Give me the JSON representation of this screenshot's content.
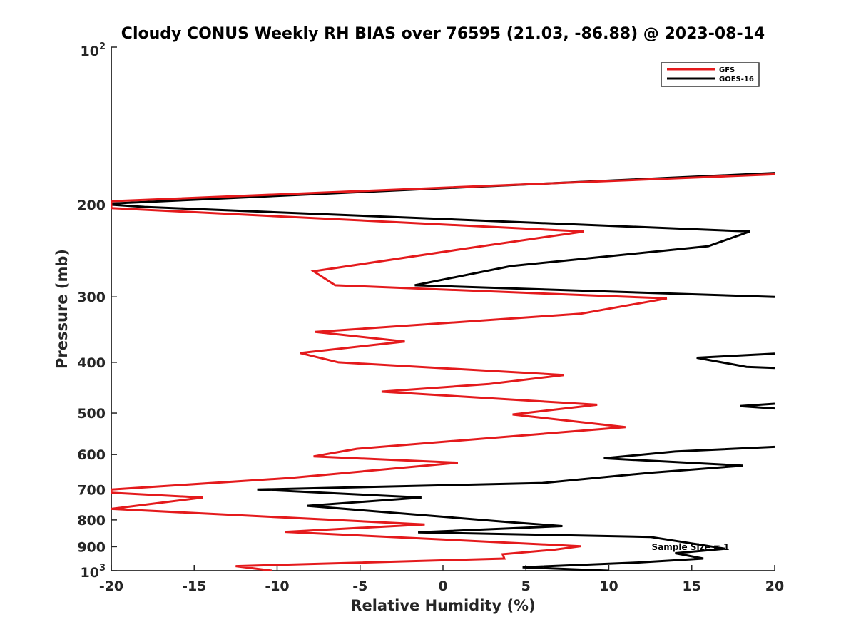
{
  "chart_data": {
    "type": "line",
    "title": "Cloudy CONUS Weekly RH BIAS over 76595 (21.03, -86.88) @ 2023-08-14",
    "xlabel": "Relative Humidity (%)",
    "ylabel": "Pressure (mb)",
    "xlim": [
      -20,
      20
    ],
    "ylim": [
      100,
      1000
    ],
    "yscale": "log",
    "y_reversed": true,
    "x_ticks": [
      "-20",
      "-15",
      "-10",
      "-5",
      "0",
      "5",
      "10",
      "15",
      "20"
    ],
    "y_ticks": [
      {
        "value": 100,
        "base": "10",
        "exp": "2"
      },
      {
        "value": 200,
        "label": "200"
      },
      {
        "value": 300,
        "label": "300"
      },
      {
        "value": 400,
        "label": "400"
      },
      {
        "value": 500,
        "label": "500"
      },
      {
        "value": 600,
        "label": "600"
      },
      {
        "value": 700,
        "label": "700"
      },
      {
        "value": 800,
        "label": "800"
      },
      {
        "value": 900,
        "label": "900"
      },
      {
        "value": 1000,
        "base": "10",
        "exp": "3"
      }
    ],
    "legend": {
      "position": "top-right",
      "entries": [
        "GFS",
        "GOES-16"
      ]
    },
    "annotation": "Sample Size = 1",
    "series": [
      {
        "name": "GFS",
        "color": "#e41a1c",
        "points": [
          [
            20,
            175
          ],
          [
            -20,
            197
          ],
          [
            -20,
            203
          ],
          [
            8.5,
            225
          ],
          [
            1.2,
            243
          ],
          [
            -7.8,
            268
          ],
          [
            -6.5,
            285
          ],
          [
            13.5,
            302
          ],
          [
            8.3,
            323
          ],
          [
            -7.7,
            350
          ],
          [
            -2.3,
            365
          ],
          [
            -8.6,
            384
          ],
          [
            -6.3,
            400
          ],
          [
            7.3,
            423
          ],
          [
            2.8,
            440
          ],
          [
            -3.7,
            455
          ],
          [
            9.3,
            482
          ],
          [
            4.2,
            503
          ],
          [
            11,
            532
          ],
          [
            -5.2,
            585
          ],
          [
            -7.8,
            605
          ],
          [
            0.9,
            622
          ],
          [
            -9.2,
            665
          ],
          [
            -20,
            700
          ],
          [
            -20,
            710
          ],
          [
            -14.5,
            725
          ],
          [
            -20,
            762
          ],
          [
            -1.1,
            816
          ],
          [
            -9.5,
            843
          ],
          [
            8.3,
            898
          ],
          [
            6.7,
            912
          ],
          [
            3.6,
            930
          ],
          [
            3.7,
            948
          ],
          [
            -12.5,
            980
          ],
          [
            -10.3,
            1000
          ]
        ]
      },
      {
        "name": "GOES-16",
        "color": "#000000",
        "segments": [
          [
            [
              20,
              174
            ],
            [
              -20,
              199
            ],
            [
              -20,
              200
            ],
            [
              -18,
              202
            ],
            [
              18.5,
              225
            ],
            [
              16,
              240
            ],
            [
              4.1,
              262
            ],
            [
              -1.7,
              285
            ],
            [
              20,
              300
            ]
          ],
          [
            [
              20,
              385
            ],
            [
              15.3,
              392
            ],
            [
              18.3,
              408
            ],
            [
              20,
              410
            ]
          ],
          [
            [
              20,
              480
            ],
            [
              17.9,
              485
            ],
            [
              20,
              490
            ]
          ],
          [
            [
              20,
              580
            ],
            [
              14,
              592
            ],
            [
              9.7,
              610
            ],
            [
              18.1,
              630
            ],
            [
              12.5,
              650
            ],
            [
              6,
              680
            ],
            [
              -11.2,
              700
            ],
            [
              -1.3,
              725
            ],
            [
              -8.2,
              752
            ],
            [
              3.8,
              807
            ],
            [
              7.2,
              822
            ],
            [
              -1.5,
              845
            ],
            [
              12.5,
              862
            ],
            [
              15.7,
              894
            ],
            [
              17,
              908
            ],
            [
              14,
              926
            ],
            [
              15.7,
              948
            ],
            [
              11.7,
              965
            ],
            [
              4.8,
              985
            ],
            [
              10,
              1000
            ]
          ]
        ]
      }
    ]
  }
}
